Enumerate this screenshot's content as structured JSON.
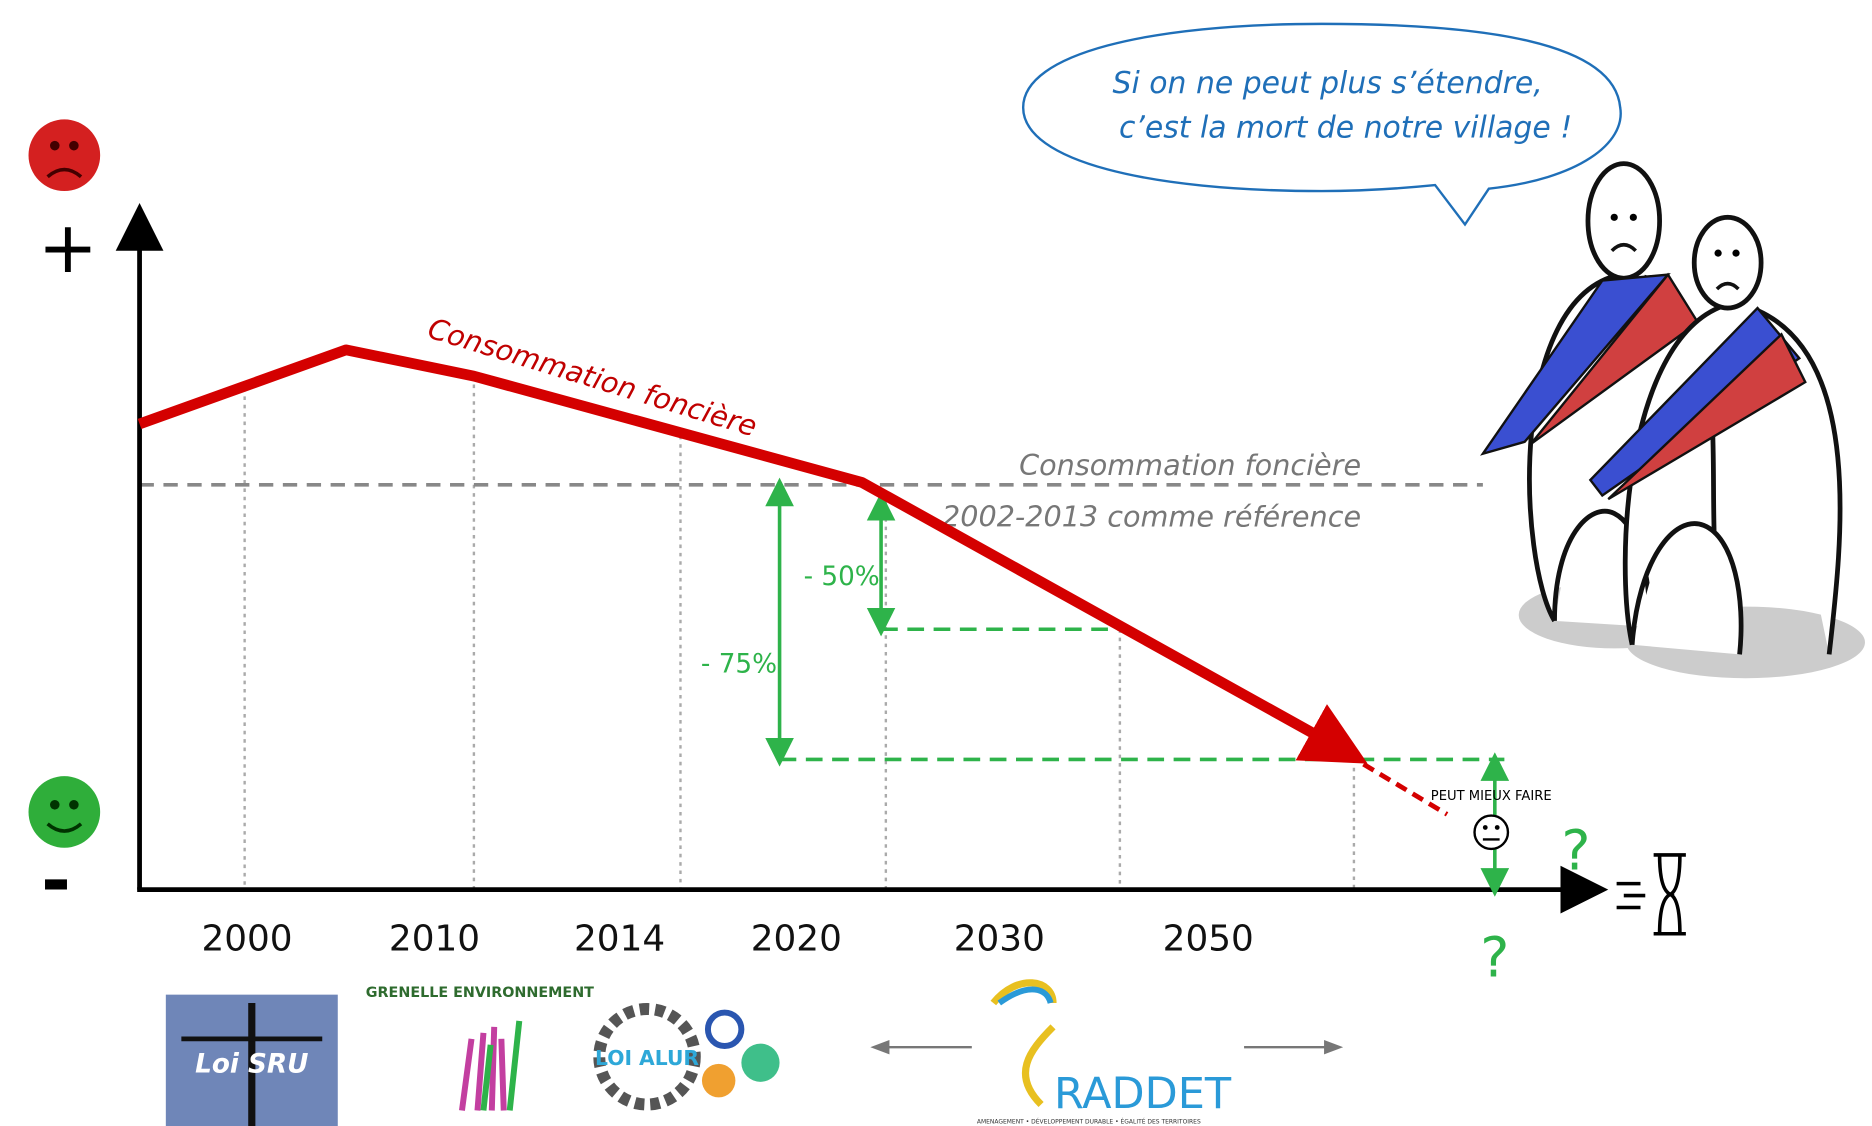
{
  "speech_bubble": {
    "line1": "Si on ne peut plus s’étendre,",
    "line2": "c’est la mort de notre village !"
  },
  "axis": {
    "plus": "+",
    "minus": "-"
  },
  "curve_label": "Consommation foncière",
  "reference": {
    "line1": "Consommation foncière",
    "line2": "2002-2013 comme  référence"
  },
  "reductions": [
    "- 50%",
    "- 75%"
  ],
  "years": [
    "2000",
    "2010",
    "2014",
    "2020",
    "2030",
    "2050"
  ],
  "question_marks": [
    "?",
    "?"
  ],
  "stamp": "PEUT MIEUX FAIRE",
  "logos": {
    "sru": "Loi SRU",
    "grenelle": "GRENELLE ENVIRONNEMENT",
    "alur": "LOI ALUR",
    "sraddet": "RADDET",
    "sraddet_sub": "AMENAGEMENT • DÉVELOPPEMENT DURABLE • ÉGALITÉ DES TERRITOIRES"
  }
}
